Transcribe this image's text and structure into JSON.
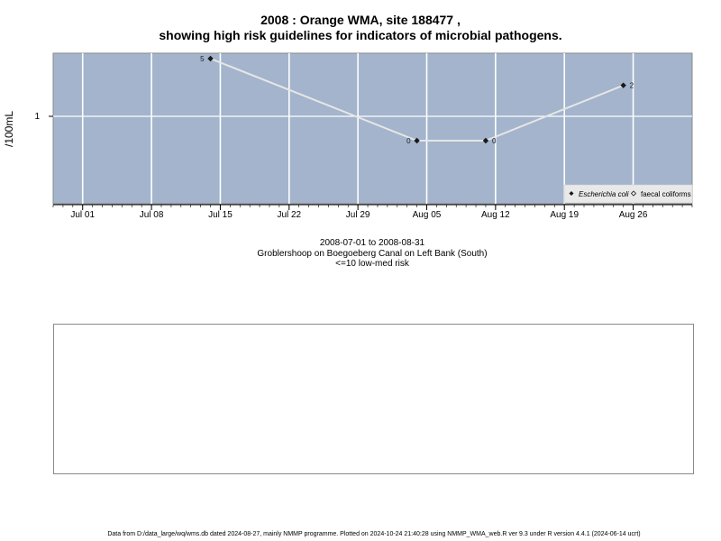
{
  "title_line1": "2008 : Orange WMA, site 188477 ,",
  "title_line2": "showing high risk guidelines for indicators of microbial pathogens.",
  "subtitle": {
    "date_range": "2008-07-01 to 2008-08-31",
    "site_name": "Groblershoop on Boegoeberg Canal on Left Bank (South)",
    "risk_note": "<=10 low-med risk"
  },
  "footer": "Data from D:/data_large/wq/wms.db dated 2024-08-27, mainly NMMP programme. Plotted on 2024-10-24 21:40:28 using NMMP_WMA_web.R ver 9.3 under R version 4.4.1 (2024-06-14 ucrt)",
  "colors": {
    "panel_bg": "#a3b4cc",
    "grid": "#ffffff",
    "series_line": "#e6e6e6",
    "point": "#1a1a1a"
  },
  "chart_data": {
    "type": "line",
    "xlabel": "",
    "ylabel": "/100mL",
    "x_tick_labels": [
      "Jul 01",
      "Jul 08",
      "Jul 15",
      "Jul 22",
      "Jul 29",
      "Aug 05",
      "Aug 12",
      "Aug 19",
      "Aug 26"
    ],
    "x_tick_dates": [
      "2008-07-01",
      "2008-07-08",
      "2008-07-15",
      "2008-07-22",
      "2008-07-29",
      "2008-08-05",
      "2008-08-12",
      "2008-08-19",
      "2008-08-26"
    ],
    "xlim": [
      "2008-06-28",
      "2008-09-01"
    ],
    "y_tick_labels": [
      "1"
    ],
    "y_tick_values": [
      1
    ],
    "yscale": "log",
    "grid": true,
    "legend_position": "bottom-right",
    "legend": [
      {
        "label": "Escherichia coli",
        "italic": true,
        "marker": "filled-diamond"
      },
      {
        "label": "faecal coliforms",
        "italic": false,
        "marker": "open-diamond"
      }
    ],
    "series": [
      {
        "name": "Escherichia coli",
        "x": [
          "2008-07-14",
          "2008-08-04",
          "2008-08-11",
          "2008-08-25"
        ],
        "y": [
          5,
          0,
          0,
          2
        ],
        "labels": [
          "5",
          "0",
          "0",
          "2"
        ]
      }
    ]
  }
}
